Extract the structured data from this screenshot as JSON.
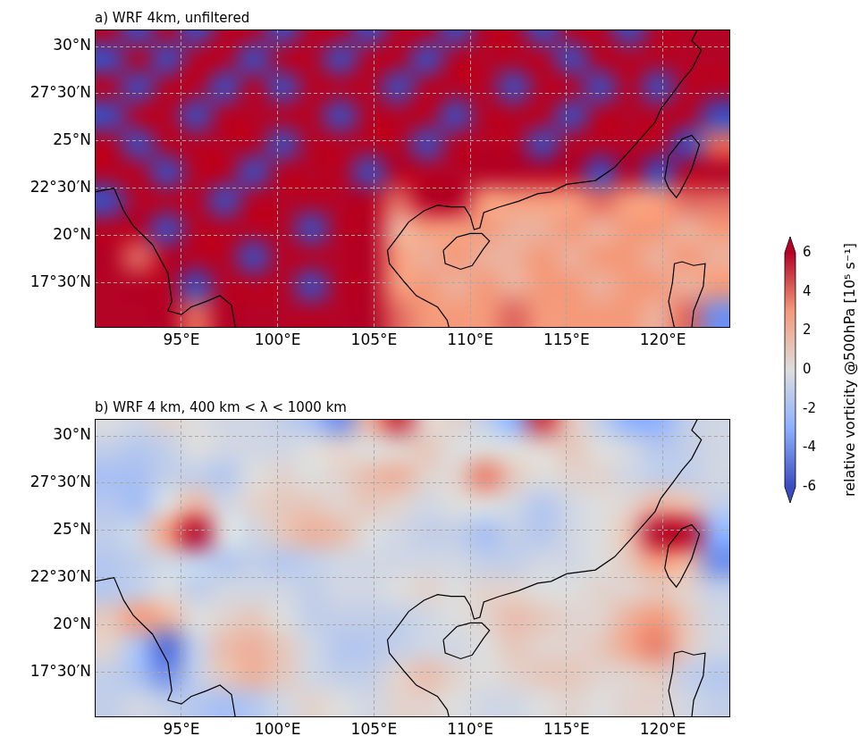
{
  "chart_data": [
    {
      "type": "heatmap",
      "title": "a) WRF 4km, unfiltered",
      "xlim": [
        90.5,
        123.5
      ],
      "ylim": [
        15.1,
        30.9
      ],
      "xticks": [
        {
          "value": 95,
          "label": "95°E"
        },
        {
          "value": 100,
          "label": "100°E"
        },
        {
          "value": 105,
          "label": "105°E"
        },
        {
          "value": 110,
          "label": "110°E"
        },
        {
          "value": 115,
          "label": "115°E"
        },
        {
          "value": 120,
          "label": "120°E"
        }
      ],
      "yticks": [
        {
          "value": 17.5,
          "label": "17°30′N"
        },
        {
          "value": 20,
          "label": "20°N"
        },
        {
          "value": 22.5,
          "label": "22°30′N"
        },
        {
          "value": 25,
          "label": "25°N"
        },
        {
          "value": 27.5,
          "label": "27°30′N"
        },
        {
          "value": 30,
          "label": "30°N"
        }
      ],
      "grid": true,
      "x": [
        91.25,
        92.75,
        94.25,
        95.75,
        97.25,
        98.75,
        100.25,
        101.75,
        103.25,
        104.75,
        106.25,
        107.75,
        109.25,
        110.75,
        112.25,
        113.75,
        115.25,
        116.75,
        118.25,
        119.75,
        121.25,
        122.75
      ],
      "y": [
        15.85,
        17.35,
        18.85,
        20.35,
        21.85,
        23.35,
        24.85,
        26.35,
        27.85,
        29.35,
        30.85
      ],
      "values": [
        [
          6,
          6,
          6,
          4,
          6,
          6,
          6,
          6,
          6,
          6,
          4,
          3,
          3,
          3,
          4,
          3,
          3,
          3,
          3,
          2,
          4,
          -4
        ],
        [
          6,
          6,
          6,
          -6,
          6,
          6,
          6,
          -6,
          6,
          6,
          3,
          3,
          2,
          3,
          2,
          3,
          3,
          2,
          3,
          3,
          2,
          3
        ],
        [
          6,
          4,
          6,
          6,
          6,
          -6,
          6,
          6,
          6,
          6,
          3,
          2,
          3,
          2,
          2,
          3,
          2,
          3,
          3,
          2,
          3,
          2
        ],
        [
          6,
          6,
          -6,
          6,
          6,
          6,
          6,
          -6,
          6,
          6,
          2,
          3,
          3,
          3,
          2,
          2,
          3,
          2,
          3,
          3,
          2,
          3
        ],
        [
          -6,
          6,
          6,
          6,
          -6,
          6,
          6,
          6,
          6,
          6,
          4,
          6,
          6,
          3,
          3,
          3,
          3,
          4,
          3,
          3,
          4,
          4
        ],
        [
          6,
          6,
          -6,
          6,
          6,
          -6,
          6,
          6,
          6,
          -6,
          6,
          6,
          6,
          6,
          6,
          6,
          6,
          -6,
          6,
          -6,
          6,
          6
        ],
        [
          6,
          -6,
          6,
          6,
          6,
          6,
          -6,
          6,
          6,
          6,
          6,
          -6,
          6,
          6,
          6,
          -6,
          6,
          6,
          6,
          6,
          -6,
          4
        ],
        [
          -6,
          6,
          6,
          -6,
          6,
          6,
          6,
          6,
          -6,
          6,
          6,
          6,
          -6,
          6,
          6,
          6,
          -6,
          6,
          6,
          6,
          6,
          -6
        ],
        [
          6,
          -6,
          6,
          6,
          -6,
          6,
          -6,
          6,
          6,
          6,
          -6,
          6,
          6,
          6,
          -6,
          6,
          6,
          -6,
          6,
          -6,
          6,
          6
        ],
        [
          -6,
          6,
          -6,
          6,
          6,
          -6,
          6,
          6,
          -6,
          6,
          6,
          -6,
          6,
          6,
          6,
          6,
          -6,
          6,
          6,
          6,
          6,
          6
        ],
        [
          6,
          -6,
          6,
          -6,
          6,
          6,
          -6,
          6,
          6,
          -6,
          6,
          6,
          -6,
          6,
          6,
          -6,
          6,
          6,
          -6,
          6,
          6,
          6
        ]
      ]
    },
    {
      "type": "heatmap",
      "title": "b) WRF 4 km, 400 km < λ < 1000 km",
      "xlim": [
        90.5,
        123.5
      ],
      "ylim": [
        15.1,
        30.9
      ],
      "xticks": [
        {
          "value": 95,
          "label": "95°E"
        },
        {
          "value": 100,
          "label": "100°E"
        },
        {
          "value": 105,
          "label": "105°E"
        },
        {
          "value": 110,
          "label": "110°E"
        },
        {
          "value": 115,
          "label": "115°E"
        },
        {
          "value": 120,
          "label": "120°E"
        }
      ],
      "yticks": [
        {
          "value": 17.5,
          "label": "17°30′N"
        },
        {
          "value": 20,
          "label": "20°N"
        },
        {
          "value": 22.5,
          "label": "22°30′N"
        },
        {
          "value": 25,
          "label": "25°N"
        },
        {
          "value": 27.5,
          "label": "27°30′N"
        },
        {
          "value": 30,
          "label": "30°N"
        }
      ],
      "grid": true,
      "x": [
        91.25,
        92.75,
        94.25,
        95.75,
        97.25,
        98.75,
        100.25,
        101.75,
        103.25,
        104.75,
        106.25,
        107.75,
        109.25,
        110.75,
        112.25,
        113.75,
        115.25,
        116.75,
        118.25,
        119.75,
        121.25,
        122.75
      ],
      "y": [
        15.85,
        17.35,
        18.85,
        20.35,
        21.85,
        23.35,
        24.85,
        26.35,
        27.85,
        29.35,
        30.85
      ],
      "values": [
        [
          -1,
          -0.5,
          -1,
          -1.5,
          -2,
          -1.5,
          -0.5,
          0.5,
          0,
          -0.5,
          0.5,
          0.5,
          0,
          -0.5,
          -0.5,
          0,
          0.5,
          0,
          0.5,
          0.5,
          -0.5,
          -1
        ],
        [
          -1,
          -2,
          -4,
          -1,
          1,
          2,
          1,
          -0.5,
          -1,
          -1,
          0.5,
          1.5,
          0.5,
          0,
          0.5,
          1,
          1,
          0.5,
          0.5,
          1,
          -1,
          -1.5
        ],
        [
          0.5,
          -2,
          -5,
          -1,
          1.5,
          2,
          1,
          -0.5,
          -1.5,
          -1.5,
          -1,
          -0.5,
          -0.5,
          0,
          1,
          0.5,
          0.5,
          1,
          2.5,
          3.5,
          1,
          -0.5
        ],
        [
          1,
          3,
          2,
          0,
          0.5,
          1,
          0,
          -1,
          -1,
          -1,
          -1,
          -0.5,
          0,
          0.5,
          1.5,
          1,
          0.5,
          0.5,
          2,
          3,
          1,
          -0.5
        ],
        [
          -1.5,
          -1,
          0,
          -1,
          -0.5,
          -0.5,
          -0.5,
          -1,
          -0.5,
          -0.5,
          0,
          0.5,
          0,
          0.5,
          0.5,
          0,
          0,
          0.5,
          0.5,
          1,
          0.5,
          -1
        ],
        [
          -1.5,
          -1,
          -0.5,
          -1,
          -1.5,
          -1,
          -1.5,
          -1,
          -0.5,
          -0.5,
          -0.5,
          -0.5,
          -0.5,
          -1,
          -1,
          -0.5,
          -0.5,
          0,
          1,
          3,
          2,
          -4
        ],
        [
          -1,
          -0.5,
          3,
          6,
          0,
          -0.5,
          1,
          2,
          1.5,
          0,
          -0.5,
          -1,
          -1,
          -2,
          -1,
          -1.5,
          -0.5,
          0,
          1.5,
          6,
          6,
          -3
        ],
        [
          -1.5,
          -2,
          0,
          2,
          -0.5,
          0.5,
          1,
          1,
          0.5,
          1,
          0.5,
          -0.5,
          0,
          0,
          -0.5,
          -1.5,
          -0.5,
          0,
          0.5,
          2,
          1.5,
          -1
        ],
        [
          -2,
          -2,
          -1,
          -1,
          -1.5,
          0,
          0.5,
          0,
          0.5,
          1.5,
          2,
          0.5,
          0.5,
          3.5,
          1,
          0,
          0.5,
          0.5,
          -0.5,
          -1,
          -1,
          -0.5
        ],
        [
          -1,
          -1.5,
          -1,
          0,
          -0.5,
          -0.5,
          -0.5,
          0,
          0.5,
          0,
          0.5,
          1,
          0,
          0,
          0,
          0.5,
          1,
          0,
          -0.5,
          -1.5,
          -1,
          -0.5
        ],
        [
          0,
          -0.5,
          0.5,
          0,
          -0.5,
          -0.5,
          -1,
          -2,
          -4,
          2,
          5,
          0.5,
          0.5,
          -1,
          -3,
          5,
          1,
          -1,
          -3,
          -3,
          -1,
          -0.5
        ]
      ]
    }
  ],
  "colorbar": {
    "label": "relative vorticity @500hPa [10⁵ s⁻¹]",
    "range": [
      -6,
      6
    ],
    "ticks": [
      -6,
      -4,
      -2,
      0,
      2,
      4,
      6
    ]
  },
  "coastlines": [
    [
      [
        90.5,
        22.3
      ],
      [
        91.5,
        22.5
      ],
      [
        92,
        21.3
      ],
      [
        92.5,
        20.5
      ],
      [
        93.5,
        19.5
      ],
      [
        94.3,
        18
      ],
      [
        94.5,
        16.5
      ],
      [
        94.3,
        16
      ],
      [
        95,
        15.8
      ],
      [
        95.5,
        16.2
      ],
      [
        96.3,
        16.5
      ],
      [
        97,
        16.8
      ],
      [
        97.6,
        16.3
      ],
      [
        97.8,
        15.1
      ]
    ],
    [
      [
        108.9,
        15.1
      ],
      [
        108.8,
        15.5
      ],
      [
        108.3,
        16.2
      ],
      [
        107.2,
        16.8
      ],
      [
        106.6,
        17.5
      ],
      [
        105.8,
        18.5
      ],
      [
        105.7,
        19.2
      ],
      [
        106.3,
        20
      ],
      [
        106.8,
        20.7
      ],
      [
        107.6,
        21.3
      ],
      [
        108.3,
        21.6
      ],
      [
        109,
        21.5
      ],
      [
        109.7,
        21.5
      ],
      [
        110,
        21
      ],
      [
        110.2,
        20.3
      ],
      [
        110.5,
        20.4
      ],
      [
        110.7,
        21.2
      ],
      [
        111.5,
        21.5
      ],
      [
        112.5,
        21.8
      ],
      [
        113.5,
        22.2
      ],
      [
        114.2,
        22.3
      ],
      [
        115,
        22.7
      ],
      [
        116.5,
        22.9
      ],
      [
        117.5,
        23.6
      ],
      [
        118.3,
        24.5
      ],
      [
        119,
        25.3
      ],
      [
        119.6,
        26
      ],
      [
        119.9,
        26.7
      ],
      [
        120.5,
        27.5
      ],
      [
        121,
        28.2
      ],
      [
        121.5,
        28.8
      ],
      [
        122,
        29.8
      ],
      [
        121.5,
        30.3
      ],
      [
        121.8,
        30.9
      ]
    ],
    [
      [
        108.6,
        19.2
      ],
      [
        108.7,
        18.5
      ],
      [
        109.5,
        18.2
      ],
      [
        110.1,
        18.4
      ],
      [
        110.7,
        19.3
      ],
      [
        111,
        19.7
      ],
      [
        110.6,
        20.1
      ],
      [
        110,
        20.1
      ],
      [
        109.3,
        19.9
      ],
      [
        108.6,
        19.2
      ]
    ],
    [
      [
        120.1,
        23
      ],
      [
        120.3,
        22.5
      ],
      [
        120.7,
        22
      ],
      [
        120.9,
        22.3
      ],
      [
        121.5,
        23.5
      ],
      [
        121.9,
        24.8
      ],
      [
        121.5,
        25.3
      ],
      [
        121,
        25.1
      ],
      [
        120.3,
        24.2
      ],
      [
        120.1,
        23
      ]
    ],
    [
      [
        120.6,
        15.1
      ],
      [
        120.4,
        16
      ],
      [
        120.3,
        16.5
      ],
      [
        120.5,
        17.5
      ],
      [
        120.6,
        18.5
      ],
      [
        121,
        18.6
      ],
      [
        121.6,
        18.4
      ],
      [
        122.2,
        18.5
      ],
      [
        122.1,
        17.3
      ],
      [
        121.6,
        16
      ],
      [
        121.5,
        15.1
      ]
    ]
  ]
}
